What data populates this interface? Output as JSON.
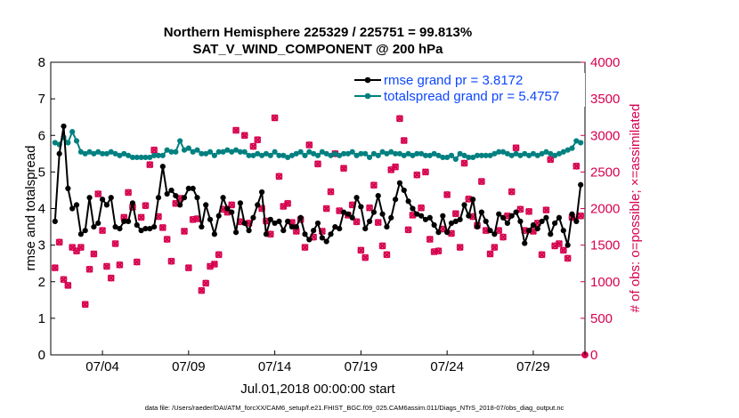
{
  "chart_data": {
    "type": "line",
    "title_line1": "Northern Hemisphere 225329 / 225751 = 99.813%",
    "title_line2": "SAT_V_WIND_COMPONENT @ 200 hPa",
    "xlabel": "Jul.01,2018 00:00:00 start",
    "ylabel_left": "rmse and totalspread",
    "ylabel_right": "# of obs: o=possible; ×=assimilated",
    "xlim": [
      1,
      32
    ],
    "ylim_left": [
      0,
      8
    ],
    "ylim_right": [
      0,
      4000
    ],
    "x_tick_values": [
      4,
      9,
      14,
      19,
      24,
      29
    ],
    "x_tick_labels": [
      "07/04",
      "07/09",
      "07/14",
      "07/19",
      "07/24",
      "07/29"
    ],
    "y_left_ticks": [
      "0",
      "1",
      "2",
      "3",
      "4",
      "5",
      "6",
      "7",
      "8"
    ],
    "y_right_ticks": [
      "0",
      "500",
      "1000",
      "1500",
      "2000",
      "2500",
      "3000",
      "3500",
      "4000"
    ],
    "legend": [
      "rmse grand pr = 3.8172",
      "totalspread grand pr = 5.4757"
    ],
    "footer": "data file: /Users/raeder/DAI/ATM_forcXX/CAM6_setup/f.e21.FHIST_BGC.f09_025.CAM6assim.011/Diags_NTrS_2018-07/obs_diag_output.nc",
    "colors": {
      "rmse": "#000000",
      "totalspread": "#008080",
      "obs": "#d6004e",
      "legend_text": "#0d47ff"
    },
    "series": [
      {
        "name": "rmse",
        "axis": "left",
        "x_start": 1.25,
        "x_step": 0.25,
        "values": [
          3.65,
          5.5,
          6.25,
          4.55,
          4.0,
          4.1,
          3.3,
          3.4,
          4.3,
          3.5,
          3.6,
          4.25,
          4.1,
          4.3,
          3.5,
          3.45,
          3.65,
          3.65,
          4.15,
          3.55,
          3.4,
          3.45,
          3.45,
          3.5,
          4.3,
          5.15,
          4.4,
          4.5,
          4.35,
          4.1,
          4.3,
          4.55,
          4.55,
          4.3,
          3.5,
          4.1,
          3.7,
          3.3,
          3.8,
          4.3,
          4.0,
          3.9,
          3.35,
          4.15,
          3.6,
          3.4,
          3.75,
          4.1,
          4.45,
          3.3,
          3.7,
          3.6,
          3.65,
          3.4,
          3.65,
          3.5,
          3.5,
          3.75,
          3.3,
          3.15,
          3.4,
          3.6,
          3.2,
          3.1,
          3.3,
          3.5,
          3.45,
          3.9,
          3.85,
          3.75,
          4.3,
          4.05,
          3.45,
          3.65,
          3.9,
          4.35,
          3.85,
          3.5,
          3.75,
          4.25,
          4.7,
          4.5,
          4.2,
          4.0,
          3.85,
          3.8,
          3.7,
          3.75,
          3.55,
          3.35,
          3.8,
          3.35,
          3.6,
          3.65,
          3.7,
          4.1,
          3.8,
          4.25,
          3.5,
          3.9,
          3.65,
          3.4,
          3.3,
          3.85,
          3.75,
          3.6,
          3.8,
          3.9,
          3.65,
          3.05,
          3.4,
          3.55,
          3.45,
          3.65,
          3.75,
          3.3,
          3.6,
          3.75,
          3.4,
          3.0,
          3.85,
          3.65,
          4.65
        ]
      },
      {
        "name": "totalspread",
        "axis": "left",
        "x_start": 1.25,
        "x_step": 0.25,
        "values": [
          5.8,
          5.75,
          5.95,
          5.8,
          6.1,
          5.85,
          5.55,
          5.5,
          5.55,
          5.5,
          5.55,
          5.5,
          5.5,
          5.55,
          5.5,
          5.45,
          5.5,
          5.45,
          5.4,
          5.4,
          5.4,
          5.4,
          5.4,
          5.45,
          5.45,
          5.45,
          5.6,
          5.55,
          5.55,
          5.85,
          5.6,
          5.65,
          5.55,
          5.6,
          5.5,
          5.5,
          5.55,
          5.45,
          5.55,
          5.55,
          5.6,
          5.55,
          5.6,
          5.55,
          5.55,
          5.45,
          5.45,
          5.5,
          5.45,
          5.5,
          5.45,
          5.55,
          5.45,
          5.45,
          5.4,
          5.45,
          5.5,
          5.55,
          5.45,
          5.55,
          5.5,
          5.45,
          5.55,
          5.5,
          5.45,
          5.5,
          5.45,
          5.5,
          5.5,
          5.55,
          5.45,
          5.5,
          5.5,
          5.4,
          5.5,
          5.45,
          5.55,
          5.5,
          5.55,
          5.5,
          5.5,
          5.45,
          5.5,
          5.45,
          5.5,
          5.5,
          5.45,
          5.45,
          5.5,
          5.45,
          5.4,
          5.4,
          5.45,
          5.35,
          5.5,
          5.45,
          5.4,
          5.4,
          5.45,
          5.45,
          5.45,
          5.45,
          5.5,
          5.55,
          5.55,
          5.5,
          5.45,
          5.5,
          5.45,
          5.5,
          5.45,
          5.5,
          5.45,
          5.5,
          5.55,
          5.5,
          5.45,
          5.5,
          5.55,
          5.6,
          5.65,
          5.85,
          5.8
        ]
      },
      {
        "name": "obs_possible",
        "axis": "right",
        "marker": "circle",
        "x_start": 1.25,
        "x_step": 0.25,
        "values": [
          1190,
          1540,
          1030,
          950,
          1470,
          1420,
          1470,
          690,
          1170,
          1380,
          2200,
          1700,
          1210,
          1050,
          1520,
          1230,
          1880,
          2220,
          2020,
          1270,
          1880,
          2040,
          2600,
          2800,
          1890,
          1740,
          1580,
          1280,
          2070,
          2140,
          1690,
          1190,
          1850,
          1860,
          880,
          980,
          1210,
          1240,
          1370,
          1990,
          1950,
          2050,
          3070,
          1820,
          3000,
          1800,
          2850,
          2940,
          2000,
          1830,
          1650,
          3240,
          2440,
          2030,
          2070,
          1810,
          1690,
          1850,
          1470,
          2870,
          1610,
          2610,
          1690,
          2000,
          2230,
          2750,
          1970,
          2550,
          1910,
          2050,
          1820,
          1430,
          1330,
          2010,
          2320,
          1810,
          1490,
          1370,
          2530,
          2570,
          3230,
          2930,
          1710,
          1910,
          2460,
          2010,
          2500,
          1580,
          1410,
          1420,
          1720,
          2190,
          1660,
          1930,
          1470,
          2620,
          2130,
          1890,
          1770,
          2370,
          1700,
          1380,
          1470,
          1700,
          1610,
          1900,
          2230,
          2830,
          1990,
          1700,
          1960,
          1690,
          1800,
          1370,
          1980,
          2670,
          1490,
          1520,
          1430,
          1320,
          1880,
          2580,
          1900
        ]
      },
      {
        "name": "obs_assimilated",
        "axis": "right",
        "marker": "x",
        "x_start": 1.25,
        "x_step": 0.25,
        "values": [
          1190,
          1540,
          1030,
          950,
          1470,
          1420,
          1470,
          690,
          1170,
          1380,
          2200,
          1700,
          1210,
          1050,
          1520,
          1230,
          1880,
          2220,
          2020,
          1270,
          1880,
          2040,
          2600,
          2800,
          1890,
          1740,
          1580,
          1280,
          2070,
          2140,
          1690,
          1190,
          1850,
          1860,
          880,
          980,
          1210,
          1240,
          1370,
          1990,
          1950,
          2050,
          3070,
          1820,
          3000,
          1800,
          2850,
          2940,
          2000,
          1830,
          1650,
          3240,
          2440,
          2030,
          2070,
          1810,
          1690,
          1850,
          1470,
          2870,
          1610,
          2610,
          1690,
          2000,
          2230,
          2750,
          1970,
          2550,
          1910,
          2050,
          1820,
          1430,
          1330,
          2010,
          2320,
          1810,
          1490,
          1370,
          2530,
          2570,
          3230,
          2930,
          1710,
          1910,
          2460,
          2010,
          2500,
          1580,
          1410,
          1420,
          1720,
          2190,
          1660,
          1930,
          1470,
          2620,
          2130,
          1890,
          1770,
          2370,
          1700,
          1380,
          1470,
          1700,
          1610,
          1900,
          2230,
          2830,
          1990,
          1700,
          1960,
          1690,
          1800,
          1370,
          1980,
          2670,
          1490,
          1520,
          1430,
          1320,
          1880,
          2580,
          1900
        ]
      },
      {
        "name": "obs_trailing_zero",
        "axis": "right",
        "marker": "circle",
        "x_start": 32.0,
        "x_step": 0.25,
        "values": [
          0
        ]
      }
    ]
  }
}
